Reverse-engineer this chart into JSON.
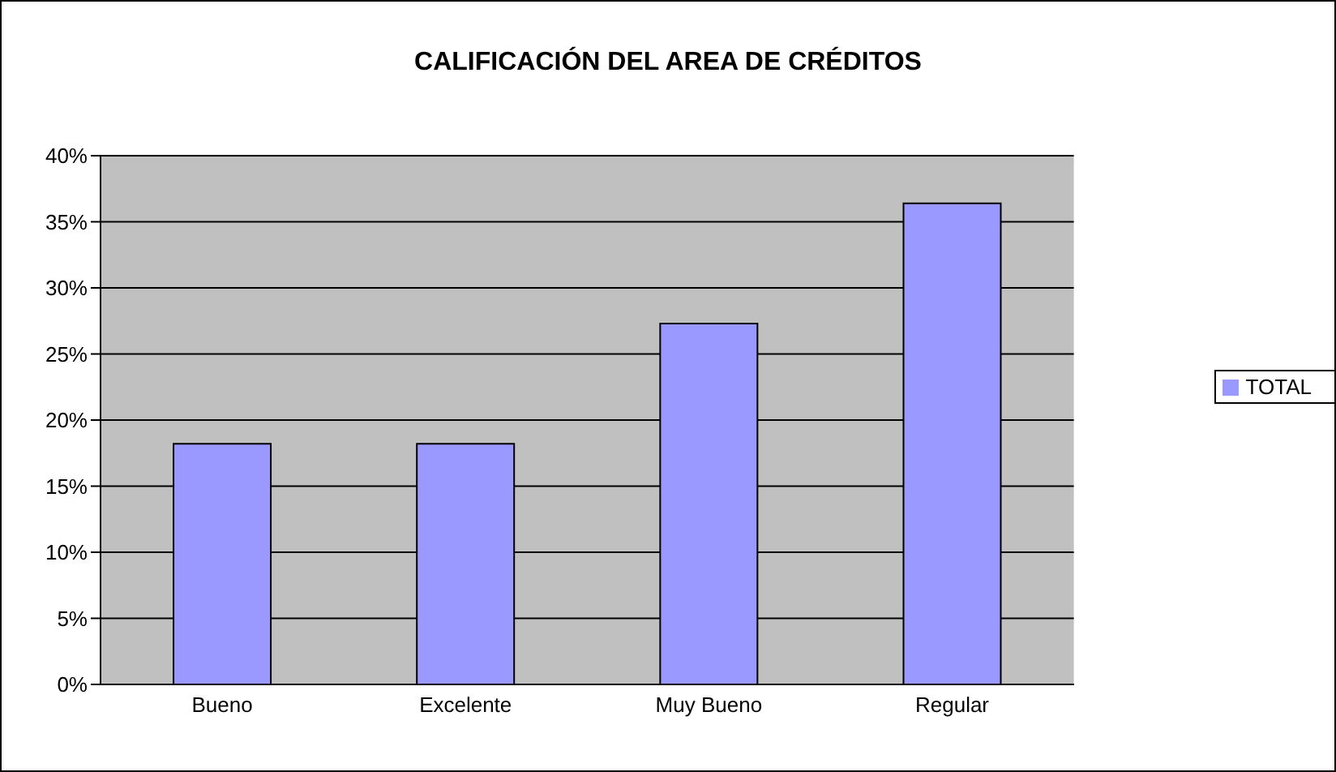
{
  "chart_data": {
    "type": "bar",
    "title": "CALIFICACIÓN DEL AREA DE CRÉDITOS",
    "categories": [
      "Bueno",
      "Excelente",
      "Muy Bueno",
      "Regular"
    ],
    "series": [
      {
        "name": "TOTAL",
        "color": "#9999ff",
        "values": [
          18.2,
          18.2,
          27.3,
          36.4
        ]
      }
    ],
    "ylim": [
      0,
      40
    ],
    "yticks": [
      {
        "value": 0,
        "label": "0%"
      },
      {
        "value": 5,
        "label": "5%"
      },
      {
        "value": 10,
        "label": "10%"
      },
      {
        "value": 15,
        "label": "15%"
      },
      {
        "value": 20,
        "label": "20%"
      },
      {
        "value": 25,
        "label": "25%"
      },
      {
        "value": 30,
        "label": "30%"
      },
      {
        "value": 35,
        "label": "35%"
      },
      {
        "value": 40,
        "label": "40%"
      }
    ],
    "grid": "y",
    "legend": "right"
  }
}
